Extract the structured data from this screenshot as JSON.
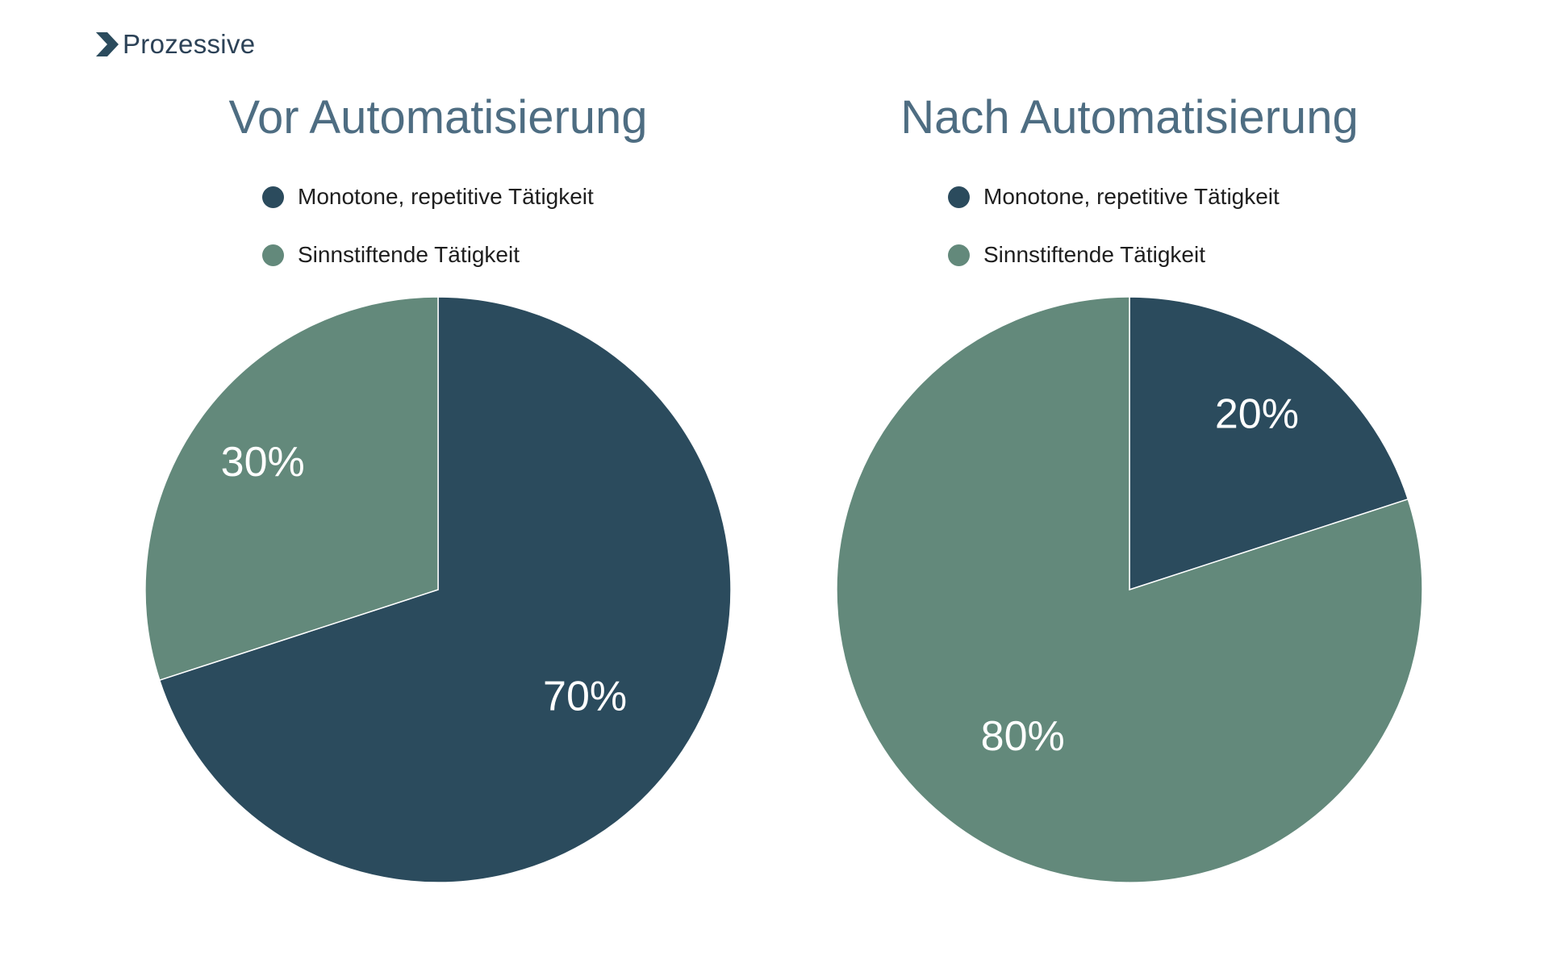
{
  "logo": {
    "text": "Prozessive",
    "icon": "chevron-right-icon",
    "text_color": "#2c4257",
    "accent_green": "#63897b",
    "accent_dark": "#2b4b5d"
  },
  "chart_data": [
    {
      "type": "pie",
      "title": "Vor Automatisierung",
      "labels": [
        "Monotone, repetitive Tätigkeit",
        "Sinnstiftende Tätigkeit"
      ],
      "values": [
        70,
        30
      ],
      "value_labels": [
        "70%",
        "30%"
      ],
      "colors": [
        "#2b4b5d",
        "#63897b"
      ],
      "start_angle_deg": 0,
      "direction": "clockwise",
      "legend_position": "top-left",
      "title_color": "#4e6d82",
      "label_color": "#ffffff"
    },
    {
      "type": "pie",
      "title": "Nach Automatisierung",
      "labels": [
        "Monotone, repetitive Tätigkeit",
        "Sinnstiftende Tätigkeit"
      ],
      "values": [
        20,
        80
      ],
      "value_labels": [
        "20%",
        "80%"
      ],
      "colors": [
        "#2b4b5d",
        "#63897b"
      ],
      "start_angle_deg": 0,
      "direction": "clockwise",
      "legend_position": "top-left",
      "title_color": "#4e6d82",
      "label_color": "#ffffff"
    }
  ]
}
